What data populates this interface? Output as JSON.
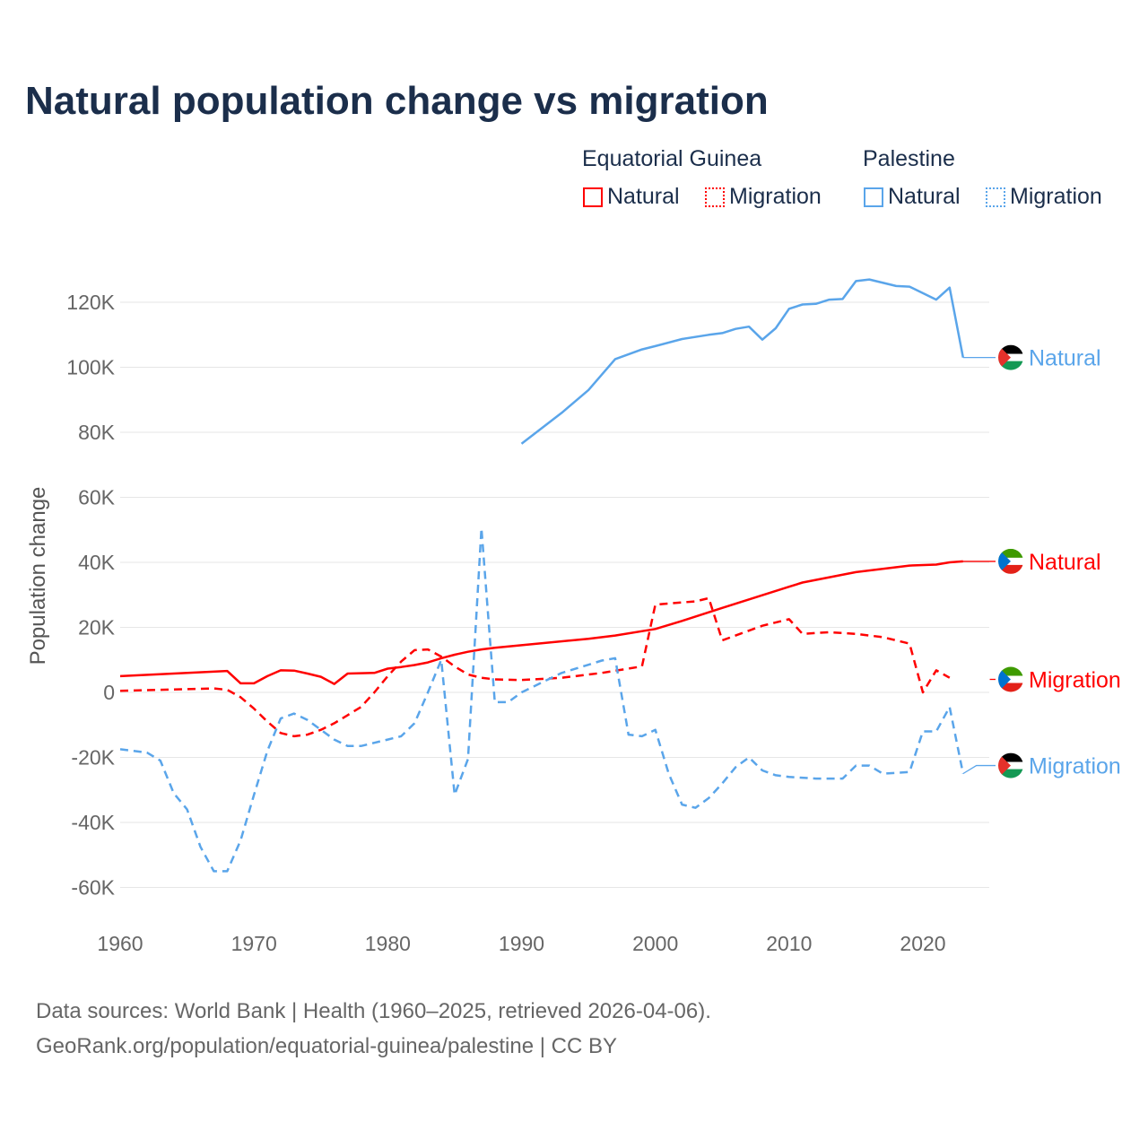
{
  "title": "Natural population change vs migration",
  "legend": {
    "groups": [
      {
        "name": "Equatorial Guinea",
        "items": [
          "Natural",
          "Migration"
        ],
        "color": "#ff0000"
      },
      {
        "name": "Palestine",
        "items": [
          "Natural",
          "Migration"
        ],
        "color": "#5aa5ea"
      }
    ]
  },
  "footer": {
    "line1": "Data sources: World Bank | Health (1960–2025, retrieved 2026-04-06).",
    "line2": "GeoRank.org/population/equatorial-guinea/palestine | CC BY"
  },
  "chart_data": {
    "type": "line",
    "ylabel": "Population change",
    "xlabel": "",
    "xlim": [
      1960,
      2025
    ],
    "ylim": [
      -70000,
      130000
    ],
    "xticks": [
      1960,
      1970,
      1980,
      1990,
      2000,
      2010,
      2020
    ],
    "yticks": [
      -60000,
      -40000,
      -20000,
      0,
      20000,
      40000,
      60000,
      80000,
      100000,
      120000
    ],
    "ytick_labels": [
      "-60K",
      "-40K",
      "-20K",
      "0",
      "20K",
      "40K",
      "60K",
      "80K",
      "100K",
      "120K"
    ],
    "grid": true,
    "series": [
      {
        "name": "Natural",
        "country": "Equatorial Guinea",
        "color": "#ff0000",
        "dash": false,
        "end_label": "Natural",
        "points": [
          [
            1960,
            5000
          ],
          [
            1968,
            6600
          ],
          [
            1969,
            2800
          ],
          [
            1970,
            2800
          ],
          [
            1971,
            5000
          ],
          [
            1972,
            6800
          ],
          [
            1973,
            6700
          ],
          [
            1974,
            5800
          ],
          [
            1975,
            4800
          ],
          [
            1976,
            2600
          ],
          [
            1977,
            5800
          ],
          [
            1978,
            5900
          ],
          [
            1979,
            6000
          ],
          [
            1980,
            7300
          ],
          [
            1981,
            7800
          ],
          [
            1982,
            8400
          ],
          [
            1983,
            9200
          ],
          [
            1984,
            10500
          ],
          [
            1985,
            11600
          ],
          [
            1986,
            12500
          ],
          [
            1987,
            13200
          ],
          [
            1988,
            13700
          ],
          [
            1990,
            14500
          ],
          [
            1995,
            16500
          ],
          [
            1997,
            17500
          ],
          [
            2000,
            19500
          ],
          [
            2002,
            22000
          ],
          [
            2005,
            26000
          ],
          [
            2010,
            32500
          ],
          [
            2011,
            33800
          ],
          [
            2015,
            37000
          ],
          [
            2019,
            39000
          ],
          [
            2021,
            39300
          ],
          [
            2022,
            40000
          ],
          [
            2023,
            40300
          ],
          [
            2025,
            40300
          ]
        ]
      },
      {
        "name": "Migration",
        "country": "Equatorial Guinea",
        "color": "#ff0000",
        "dash": true,
        "end_label": "Migration",
        "points": [
          [
            1960,
            500
          ],
          [
            1967,
            1200
          ],
          [
            1968,
            800
          ],
          [
            1969,
            -1500
          ],
          [
            1970,
            -5000
          ],
          [
            1971,
            -9000
          ],
          [
            1972,
            -12500
          ],
          [
            1973,
            -13500
          ],
          [
            1974,
            -13000
          ],
          [
            1975,
            -11500
          ],
          [
            1976,
            -9500
          ],
          [
            1977,
            -7000
          ],
          [
            1978,
            -4500
          ],
          [
            1979,
            0
          ],
          [
            1980,
            5000
          ],
          [
            1981,
            9500
          ],
          [
            1982,
            13000
          ],
          [
            1983,
            13200
          ],
          [
            1984,
            11000
          ],
          [
            1985,
            8000
          ],
          [
            1986,
            5500
          ],
          [
            1987,
            4500
          ],
          [
            1988,
            4000
          ],
          [
            1990,
            3800
          ],
          [
            1993,
            4500
          ],
          [
            1996,
            6000
          ],
          [
            1999,
            8000
          ],
          [
            2000,
            27000
          ],
          [
            2003,
            28000
          ],
          [
            2004,
            29000
          ],
          [
            2005,
            16000
          ],
          [
            2008,
            20500
          ],
          [
            2010,
            22500
          ],
          [
            2011,
            18000
          ],
          [
            2013,
            18500
          ],
          [
            2015,
            18000
          ],
          [
            2017,
            17000
          ],
          [
            2019,
            15000
          ],
          [
            2020,
            0
          ],
          [
            2021,
            6800
          ],
          [
            2022,
            4500
          ],
          [
            2025,
            4000
          ]
        ]
      },
      {
        "name": "Natural",
        "country": "Palestine",
        "color": "#5aa5ea",
        "dash": false,
        "end_label": "Natural",
        "points": [
          [
            1990,
            76500
          ],
          [
            1993,
            86000
          ],
          [
            1995,
            93000
          ],
          [
            1997,
            102500
          ],
          [
            1999,
            105500
          ],
          [
            2000,
            106500
          ],
          [
            2002,
            108700
          ],
          [
            2004,
            110000
          ],
          [
            2005,
            110500
          ],
          [
            2006,
            111800
          ],
          [
            2007,
            112500
          ],
          [
            2008,
            108500
          ],
          [
            2009,
            112000
          ],
          [
            2010,
            118000
          ],
          [
            2011,
            119300
          ],
          [
            2012,
            119500
          ],
          [
            2013,
            120800
          ],
          [
            2014,
            121000
          ],
          [
            2015,
            126500
          ],
          [
            2016,
            127000
          ],
          [
            2018,
            125000
          ],
          [
            2019,
            124800
          ],
          [
            2021,
            120800
          ],
          [
            2022,
            124500
          ],
          [
            2023,
            103000
          ],
          [
            2025,
            103000
          ]
        ]
      },
      {
        "name": "Migration",
        "country": "Palestine",
        "color": "#5aa5ea",
        "dash": true,
        "end_label": "Migration",
        "points": [
          [
            1960,
            -17500
          ],
          [
            1962,
            -18500
          ],
          [
            1963,
            -21000
          ],
          [
            1964,
            -31000
          ],
          [
            1965,
            -36000
          ],
          [
            1966,
            -47500
          ],
          [
            1967,
            -55000
          ],
          [
            1968,
            -55000
          ],
          [
            1969,
            -45500
          ],
          [
            1970,
            -31500
          ],
          [
            1971,
            -18000
          ],
          [
            1972,
            -8000
          ],
          [
            1973,
            -6500
          ],
          [
            1974,
            -8500
          ],
          [
            1975,
            -11500
          ],
          [
            1976,
            -14500
          ],
          [
            1977,
            -16500
          ],
          [
            1978,
            -16500
          ],
          [
            1979,
            -15500
          ],
          [
            1980,
            -14500
          ],
          [
            1981,
            -13500
          ],
          [
            1982,
            -9500
          ],
          [
            1983,
            0
          ],
          [
            1984,
            10000
          ],
          [
            1985,
            -31500
          ],
          [
            1986,
            -20500
          ],
          [
            1987,
            50500
          ],
          [
            1988,
            -3000
          ],
          [
            1989,
            -3000
          ],
          [
            1990,
            0
          ],
          [
            1992,
            4000
          ],
          [
            1993,
            6000
          ],
          [
            1995,
            8500
          ],
          [
            1996,
            9800
          ],
          [
            1997,
            10500
          ],
          [
            1998,
            -13000
          ],
          [
            1999,
            -13500
          ],
          [
            2000,
            -11500
          ],
          [
            2001,
            -25000
          ],
          [
            2002,
            -34500
          ],
          [
            2003,
            -35500
          ],
          [
            2004,
            -32500
          ],
          [
            2005,
            -28000
          ],
          [
            2006,
            -23000
          ],
          [
            2007,
            -20000
          ],
          [
            2008,
            -24000
          ],
          [
            2009,
            -25500
          ],
          [
            2010,
            -26000
          ],
          [
            2012,
            -26500
          ],
          [
            2014,
            -26500
          ],
          [
            2015,
            -22500
          ],
          [
            2016,
            -22500
          ],
          [
            2017,
            -25000
          ],
          [
            2019,
            -24500
          ],
          [
            2020,
            -12000
          ],
          [
            2021,
            -12000
          ],
          [
            2022,
            -4500
          ],
          [
            2023,
            -25000
          ],
          [
            2024,
            -22500
          ],
          [
            2025,
            -22500
          ]
        ]
      }
    ]
  }
}
